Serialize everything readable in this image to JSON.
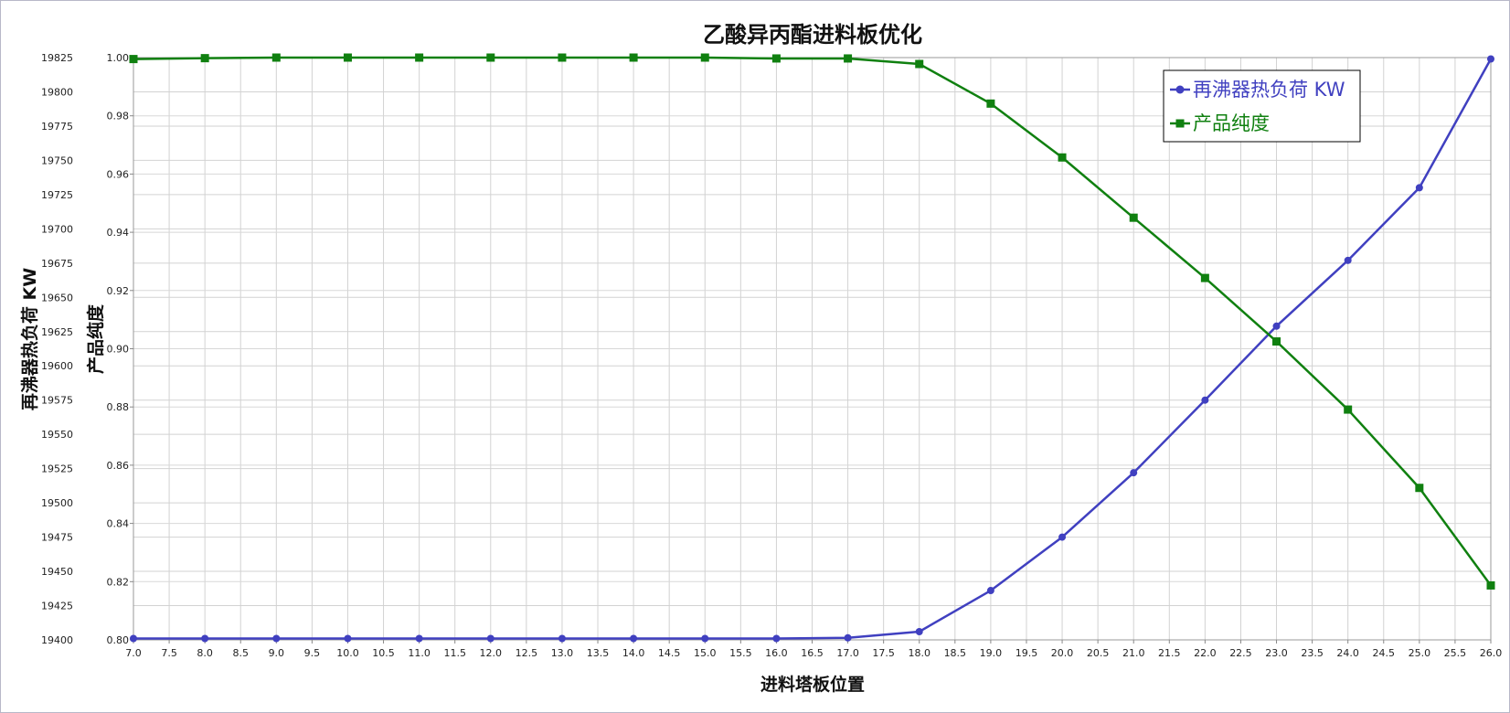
{
  "chart_data": {
    "type": "line",
    "title": "乙酸异丙酯进料板优化",
    "xlabel": "进料塔板位置",
    "ylabel_left": "再沸器热负荷 KW",
    "ylabel_right": "产品纯度",
    "xlim": [
      7.0,
      26.0
    ],
    "xstep": 0.5,
    "ylim_left": [
      19400,
      19825
    ],
    "ystep_left": 25,
    "ylim_right": [
      0.8,
      1.0
    ],
    "ystep_right": 0.02,
    "x_ticks": [
      "7.0",
      "7.5",
      "8.0",
      "8.5",
      "9.0",
      "9.5",
      "10.0",
      "10.5",
      "11.0",
      "11.5",
      "12.0",
      "12.5",
      "13.0",
      "13.5",
      "14.0",
      "14.5",
      "15.0",
      "15.5",
      "16.0",
      "16.5",
      "17.0",
      "17.5",
      "18.0",
      "18.5",
      "19.0",
      "19.5",
      "20.0",
      "20.5",
      "21.0",
      "21.5",
      "22.0",
      "22.5",
      "23.0",
      "23.5",
      "24.0",
      "24.5",
      "25.0",
      "25.5",
      "26.0"
    ],
    "left_ticks": [
      "19400",
      "19425",
      "19450",
      "19475",
      "19500",
      "19525",
      "19550",
      "19575",
      "19600",
      "19625",
      "19650",
      "19675",
      "19700",
      "19725",
      "19750",
      "19775",
      "19800",
      "19825"
    ],
    "right_ticks": [
      "0.80",
      "0.82",
      "0.84",
      "0.86",
      "0.88",
      "0.90",
      "0.92",
      "0.94",
      "0.96",
      "0.98",
      "1.00"
    ],
    "grid": true,
    "legend_position": "top-right",
    "x": [
      7,
      8,
      9,
      10,
      11,
      12,
      13,
      14,
      15,
      16,
      17,
      18,
      19,
      20,
      21,
      22,
      23,
      24,
      25,
      26
    ],
    "series": [
      {
        "name": "再沸器热负荷 KW",
        "axis": "left",
        "color": "#4040c0",
        "marker": "circle",
        "values": [
          19401,
          19401,
          19401,
          19401,
          19401,
          19401,
          19401,
          19401,
          19401,
          19401,
          19401.5,
          19406,
          19436,
          19475,
          19522,
          19575,
          19629,
          19677,
          19730,
          19824
        ]
      },
      {
        "name": "产品纯度",
        "axis": "right",
        "color": "#108010",
        "marker": "square",
        "values": [
          0.9995,
          0.9998,
          1.0,
          1.0,
          1.0,
          1.0,
          1.0,
          1.0,
          1.0,
          0.9997,
          0.9997,
          0.9978,
          0.9842,
          0.9657,
          0.945,
          0.9243,
          0.9025,
          0.8791,
          0.8522,
          0.8187
        ]
      }
    ]
  }
}
